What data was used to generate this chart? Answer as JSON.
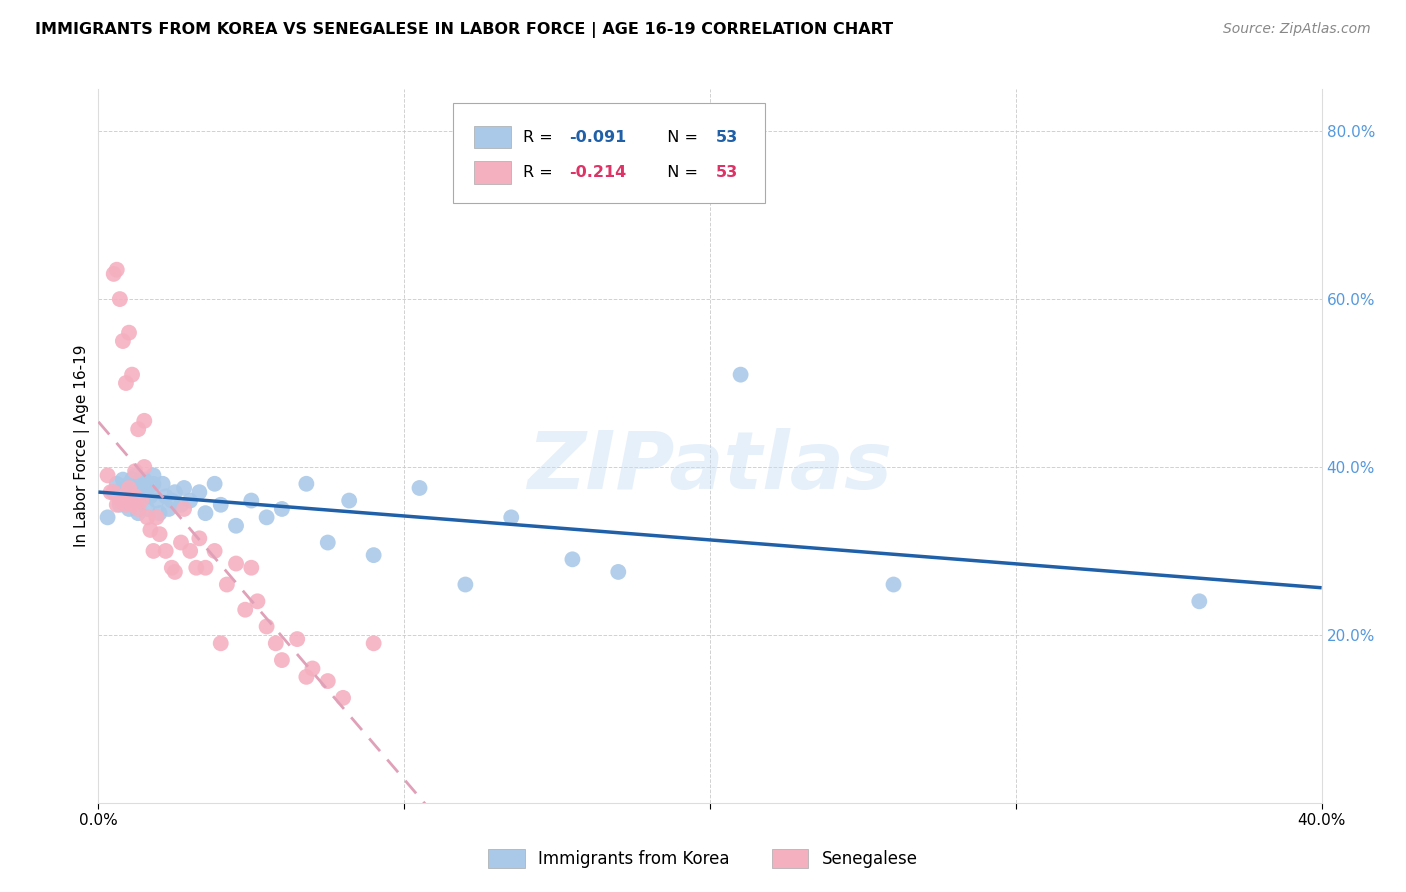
{
  "title": "IMMIGRANTS FROM KOREA VS SENEGALESE IN LABOR FORCE | AGE 16-19 CORRELATION CHART",
  "source": "Source: ZipAtlas.com",
  "ylabel": "In Labor Force | Age 16-19",
  "xlim": [
    0.0,
    0.4
  ],
  "ylim": [
    0.0,
    0.85
  ],
  "yticks": [
    0.0,
    0.2,
    0.4,
    0.6,
    0.8
  ],
  "xticks": [
    0.0,
    0.1,
    0.2,
    0.3,
    0.4
  ],
  "xtick_labels": [
    "0.0%",
    "",
    "",
    "",
    "40.0%"
  ],
  "right_ytick_labels": [
    "",
    "20.0%",
    "40.0%",
    "60.0%",
    "80.0%"
  ],
  "legend_korea": "Immigrants from Korea",
  "legend_senegal": "Senegalese",
  "korea_R_val": "-0.091",
  "korea_N_val": "53",
  "senegal_R_val": "-0.214",
  "senegal_N_val": "53",
  "korea_color": "#aac9e8",
  "senegal_color": "#f5b0c0",
  "korea_line_color": "#2060a8",
  "senegal_line_color": "#e0a0b8",
  "background_color": "#ffffff",
  "grid_color": "#cccccc",
  "right_tick_color": "#5599dd",
  "watermark": "ZIPatlas",
  "korea_x": [
    0.003,
    0.005,
    0.006,
    0.007,
    0.008,
    0.008,
    0.009,
    0.01,
    0.01,
    0.011,
    0.011,
    0.012,
    0.012,
    0.013,
    0.013,
    0.014,
    0.015,
    0.015,
    0.016,
    0.016,
    0.017,
    0.018,
    0.018,
    0.019,
    0.02,
    0.021,
    0.022,
    0.023,
    0.024,
    0.025,
    0.027,
    0.028,
    0.03,
    0.033,
    0.035,
    0.038,
    0.04,
    0.045,
    0.05,
    0.055,
    0.06,
    0.068,
    0.075,
    0.082,
    0.09,
    0.105,
    0.12,
    0.135,
    0.155,
    0.17,
    0.21,
    0.26,
    0.36
  ],
  "korea_y": [
    0.34,
    0.37,
    0.38,
    0.355,
    0.385,
    0.37,
    0.36,
    0.38,
    0.35,
    0.365,
    0.385,
    0.375,
    0.39,
    0.36,
    0.345,
    0.38,
    0.37,
    0.385,
    0.35,
    0.375,
    0.365,
    0.38,
    0.39,
    0.36,
    0.345,
    0.38,
    0.365,
    0.35,
    0.36,
    0.37,
    0.355,
    0.375,
    0.36,
    0.37,
    0.345,
    0.38,
    0.355,
    0.33,
    0.36,
    0.34,
    0.35,
    0.38,
    0.31,
    0.36,
    0.295,
    0.375,
    0.26,
    0.34,
    0.29,
    0.275,
    0.51,
    0.26,
    0.24
  ],
  "senegal_x": [
    0.003,
    0.004,
    0.005,
    0.005,
    0.006,
    0.006,
    0.007,
    0.007,
    0.008,
    0.008,
    0.009,
    0.009,
    0.01,
    0.01,
    0.011,
    0.011,
    0.012,
    0.012,
    0.013,
    0.013,
    0.014,
    0.015,
    0.015,
    0.016,
    0.017,
    0.018,
    0.019,
    0.02,
    0.022,
    0.024,
    0.025,
    0.027,
    0.028,
    0.03,
    0.032,
    0.033,
    0.035,
    0.038,
    0.04,
    0.042,
    0.045,
    0.048,
    0.05,
    0.052,
    0.055,
    0.058,
    0.06,
    0.065,
    0.068,
    0.07,
    0.075,
    0.08,
    0.09
  ],
  "senegal_y": [
    0.39,
    0.37,
    0.37,
    0.63,
    0.355,
    0.635,
    0.36,
    0.6,
    0.365,
    0.55,
    0.355,
    0.5,
    0.375,
    0.56,
    0.355,
    0.51,
    0.365,
    0.395,
    0.35,
    0.445,
    0.36,
    0.4,
    0.455,
    0.34,
    0.325,
    0.3,
    0.34,
    0.32,
    0.3,
    0.28,
    0.275,
    0.31,
    0.35,
    0.3,
    0.28,
    0.315,
    0.28,
    0.3,
    0.19,
    0.26,
    0.285,
    0.23,
    0.28,
    0.24,
    0.21,
    0.19,
    0.17,
    0.195,
    0.15,
    0.16,
    0.145,
    0.125,
    0.19
  ]
}
